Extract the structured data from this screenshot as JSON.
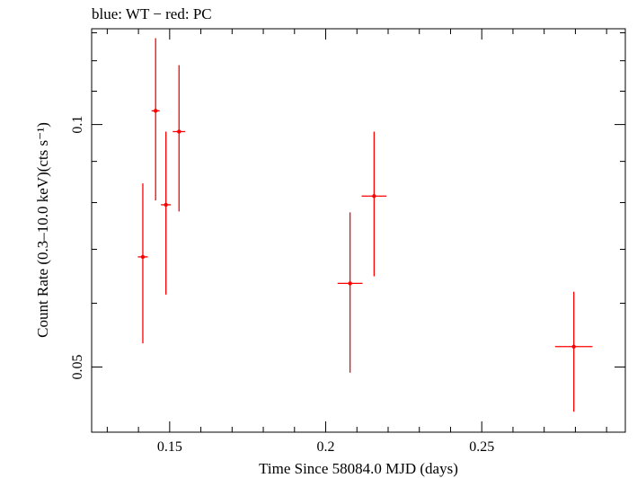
{
  "chart_data": {
    "type": "scatter",
    "title": "blue: WT − red: PC",
    "xlabel": "Time Since 58084.0 MJD (days)",
    "ylabel": "Count Rate (0.3–10.0 keV)(cts s⁻¹)",
    "xlim": [
      0.125,
      0.296
    ],
    "ylim": [
      0.0415,
      0.1315
    ],
    "yscale": "log",
    "grid": false,
    "xticks": [
      {
        "value": 0.15,
        "label": "0.15"
      },
      {
        "value": 0.2,
        "label": "0.2"
      },
      {
        "value": 0.25,
        "label": "0.25"
      }
    ],
    "yticks": [
      {
        "value": 0.05,
        "label": "0.05"
      },
      {
        "value": 0.1,
        "label": "0.1"
      }
    ],
    "series": [
      {
        "color": "#ff0000",
        "points": [
          {
            "x": 0.1414,
            "xerr": 0.0016,
            "y": 0.0685,
            "ylo": 0.0535,
            "yhi": 0.0845
          },
          {
            "x": 0.1455,
            "xerr": 0.0013,
            "y": 0.104,
            "ylo": 0.0805,
            "yhi": 0.128
          },
          {
            "x": 0.1488,
            "xerr": 0.0016,
            "y": 0.0795,
            "ylo": 0.0615,
            "yhi": 0.098
          },
          {
            "x": 0.153,
            "xerr": 0.002,
            "y": 0.098,
            "ylo": 0.078,
            "yhi": 0.1185
          },
          {
            "x": 0.2078,
            "xerr": 0.004,
            "y": 0.0635,
            "ylo": 0.0492,
            "yhi": 0.0778
          },
          {
            "x": 0.2155,
            "xerr": 0.004,
            "y": 0.0815,
            "ylo": 0.0648,
            "yhi": 0.098
          },
          {
            "x": 0.2795,
            "xerr": 0.006,
            "y": 0.053,
            "ylo": 0.044,
            "yhi": 0.062
          }
        ]
      }
    ]
  }
}
